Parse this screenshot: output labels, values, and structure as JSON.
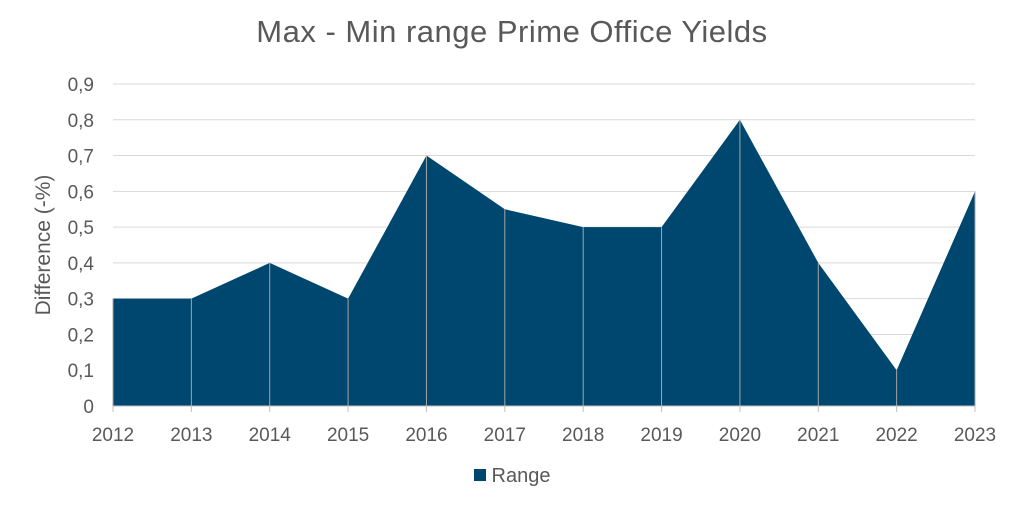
{
  "chart_data": {
    "type": "area",
    "title": "Max - Min range Prime Office Yields",
    "ylabel": "Difference (-%)",
    "xlabel": "",
    "categories": [
      "2012",
      "2013",
      "2014",
      "2015",
      "2016",
      "2017",
      "2018",
      "2019",
      "2020",
      "2021",
      "2022",
      "2023"
    ],
    "series": [
      {
        "name": "Range",
        "color": "#00476f",
        "values": [
          0.3,
          0.3,
          0.4,
          0.3,
          0.7,
          0.55,
          0.5,
          0.5,
          0.8,
          0.4,
          0.1,
          0.6
        ]
      }
    ],
    "ylim": [
      0,
      0.9
    ],
    "yticks": [
      "0",
      "0,1",
      "0,2",
      "0,3",
      "0,4",
      "0,5",
      "0,6",
      "0,7",
      "0,8",
      "0,9"
    ],
    "grid": true,
    "legend_position": "bottom"
  }
}
